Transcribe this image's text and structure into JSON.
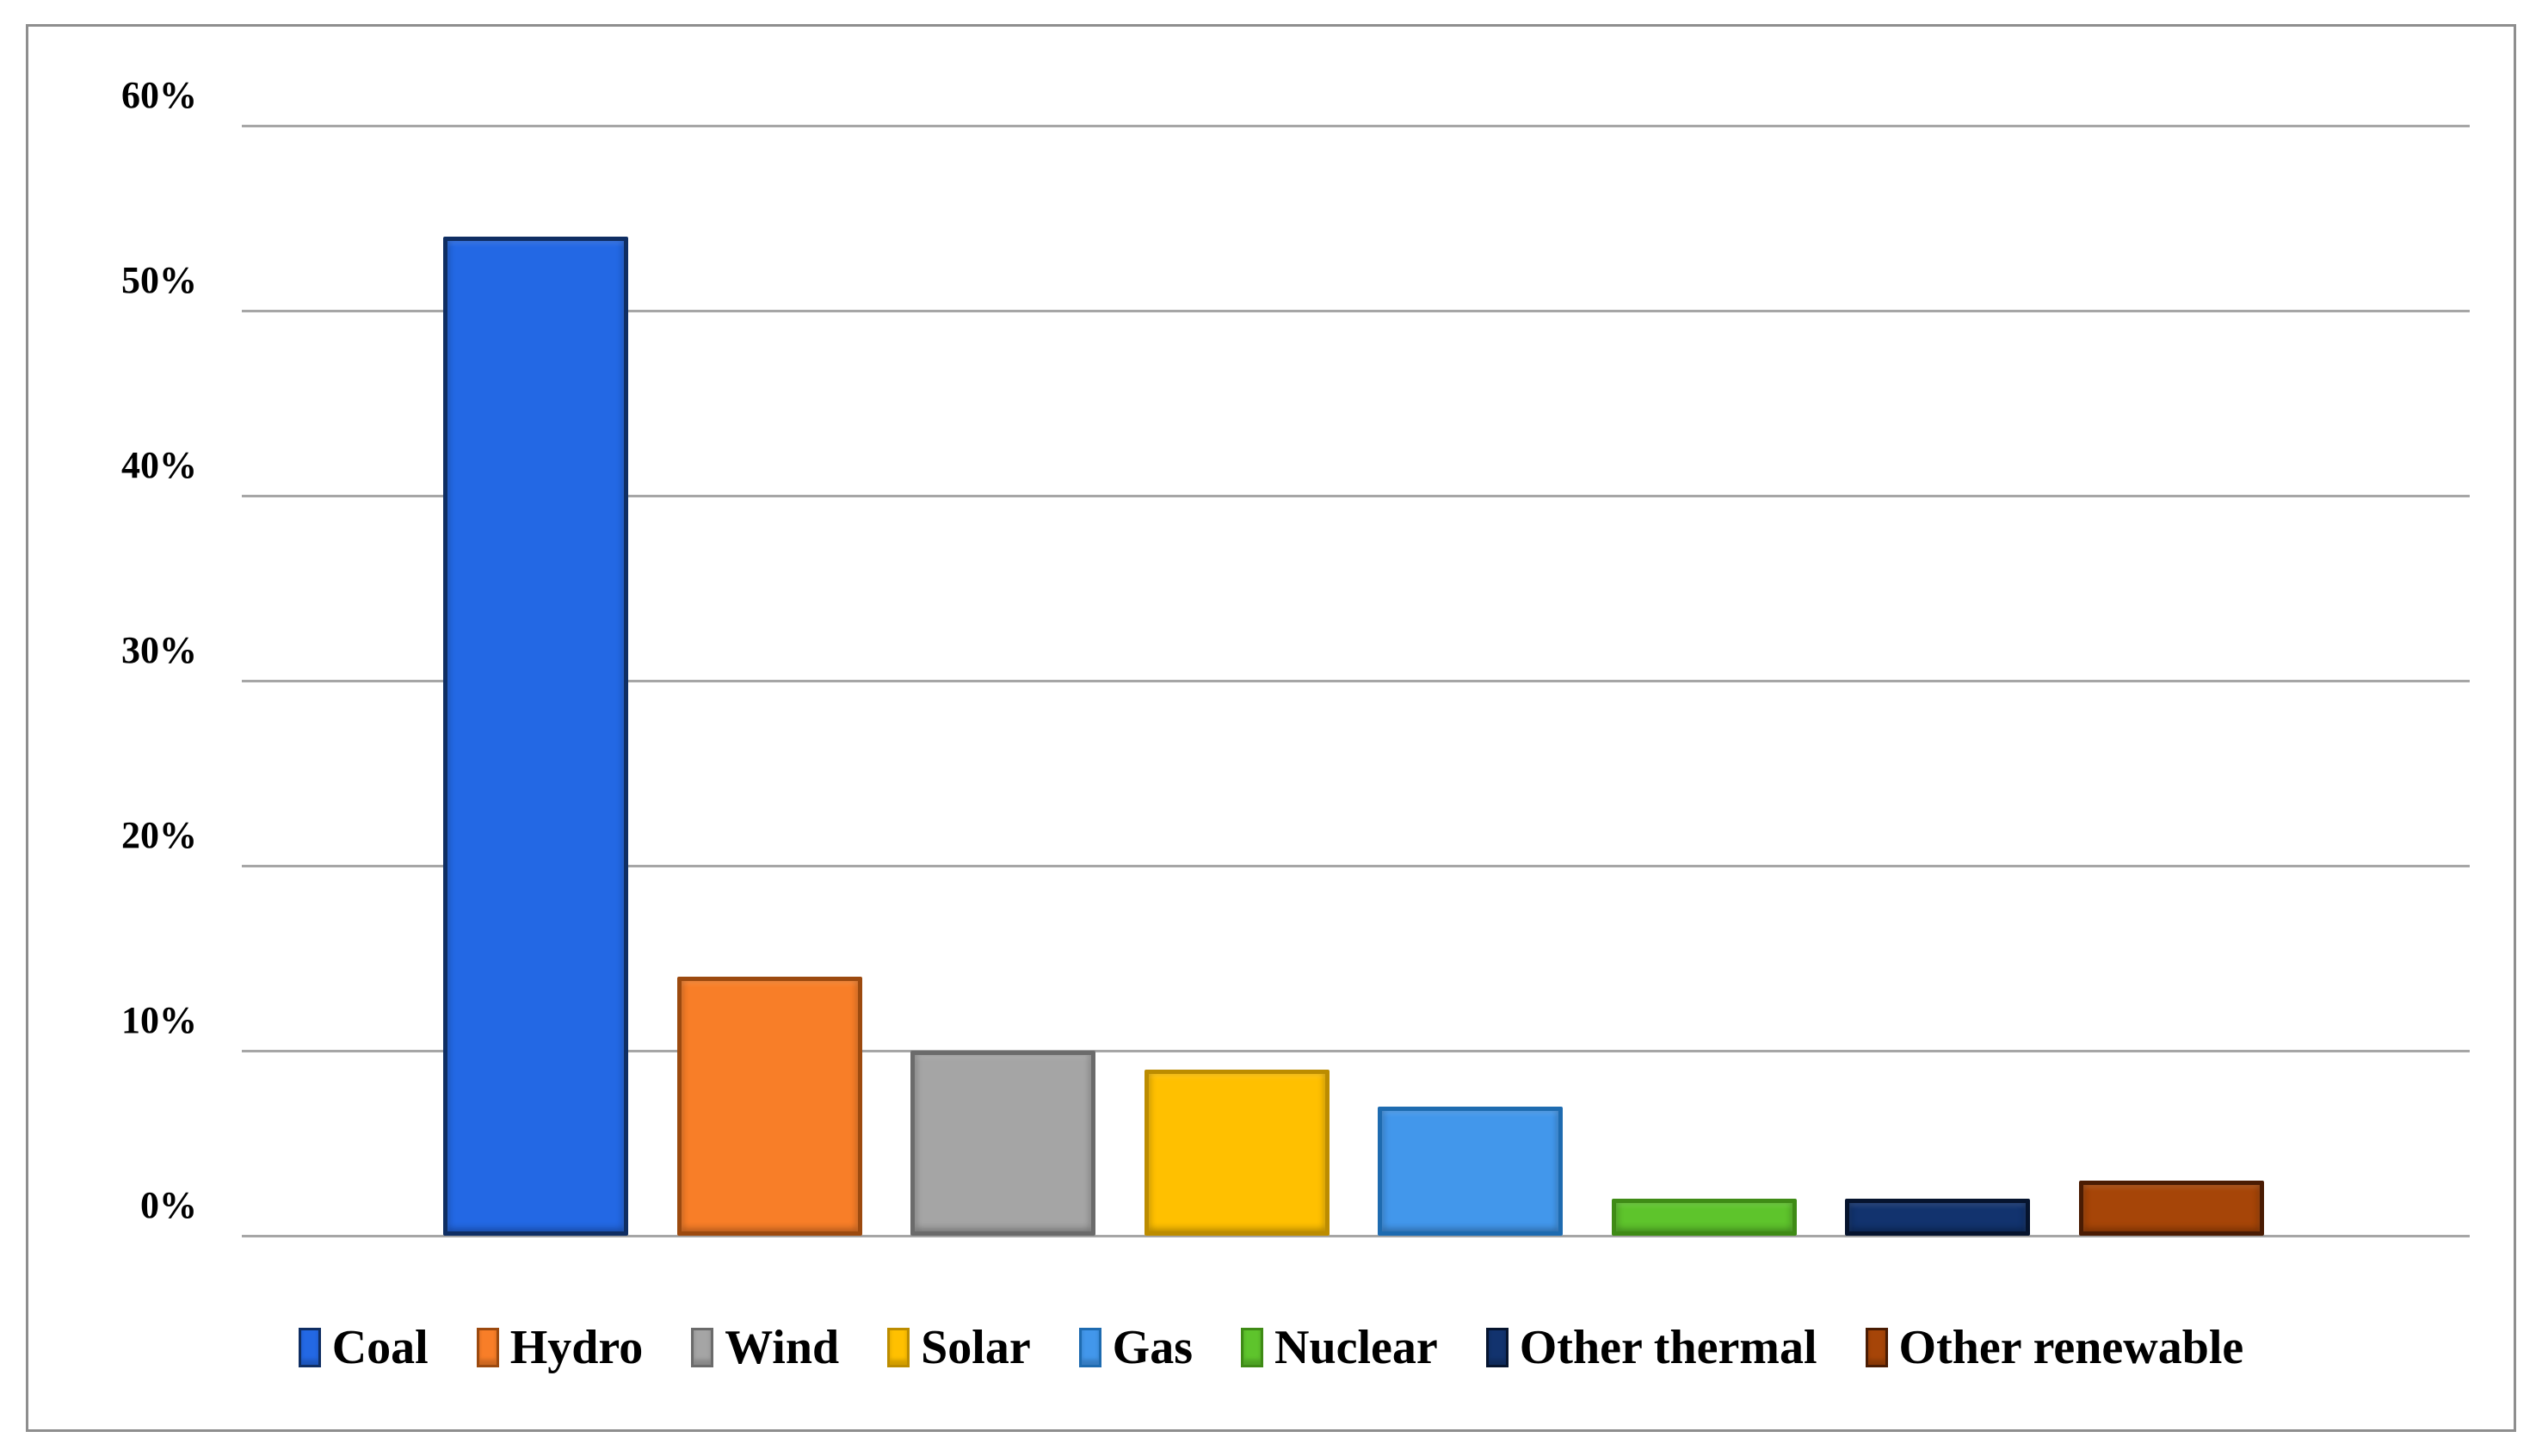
{
  "chart_data": {
    "type": "bar",
    "title": "",
    "xlabel": "",
    "ylabel": "",
    "categories": [
      "Coal",
      "Hydro",
      "Wind",
      "Solar",
      "Gas",
      "Nuclear",
      "Other thermal",
      "Other renewable"
    ],
    "values": [
      54,
      14,
      10,
      9,
      7,
      2,
      2,
      3
    ],
    "value_unit": "%",
    "ylim": [
      0,
      60
    ],
    "grid": true,
    "legend_position": "bottom",
    "y_ticks": [
      {
        "label": "60%",
        "value": 60
      },
      {
        "label": "50%",
        "value": 50
      },
      {
        "label": "40%",
        "value": 40
      },
      {
        "label": "30%",
        "value": 30
      },
      {
        "label": "20%",
        "value": 20
      },
      {
        "label": "10%",
        "value": 10
      },
      {
        "label": "0%",
        "value": 0
      }
    ],
    "series_colors": [
      {
        "name": "Coal",
        "fill": "#2368E4",
        "border": "#0F2E63"
      },
      {
        "name": "Hydro",
        "fill": "#F87E28",
        "border": "#9C4A0F"
      },
      {
        "name": "Wind",
        "fill": "#A5A5A5",
        "border": "#6B6B6B"
      },
      {
        "name": "Solar",
        "fill": "#FFC000",
        "border": "#BC8C00"
      },
      {
        "name": "Gas",
        "fill": "#4297EB",
        "border": "#1E6BB0"
      },
      {
        "name": "Nuclear",
        "fill": "#5EC42C",
        "border": "#3F8B16"
      },
      {
        "name": "Other thermal",
        "fill": "#12336E",
        "border": "#06142E"
      },
      {
        "name": "Other renewable",
        "fill": "#A64508",
        "border": "#4A1C03"
      }
    ]
  },
  "style": {
    "background": "#FFFFFF",
    "frame_border_color": "#8E8E8E",
    "grid_color": "#A6A6A6",
    "text_color": "#000000"
  }
}
